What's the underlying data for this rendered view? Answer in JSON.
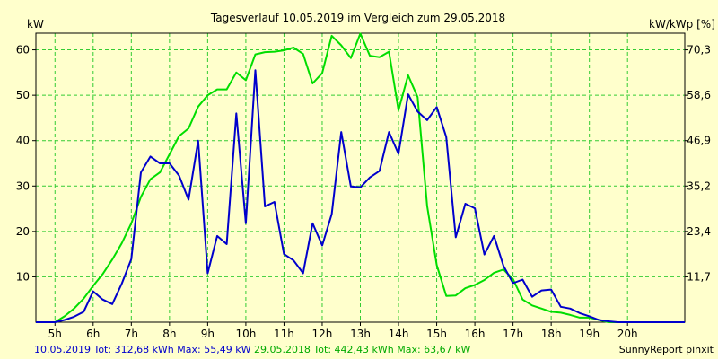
{
  "chart_data": {
    "type": "line",
    "title": "Tagesverlauf 10.05.2019 im Vergleich zum 29.05.2018",
    "ylabel_left": "kW",
    "ylabel_right": "kW/kWp [%]",
    "credit": "SunnyReport pinxit",
    "xlim": [
      4.5,
      21.5
    ],
    "ylim": [
      0,
      63.67
    ],
    "x_ticks": [
      5,
      6,
      7,
      8,
      9,
      10,
      11,
      12,
      13,
      14,
      15,
      16,
      17,
      18,
      19,
      20
    ],
    "x_tick_labels": [
      "5h",
      "6h",
      "7h",
      "8h",
      "9h",
      "10h",
      "11h",
      "12h",
      "13h",
      "14h",
      "15h",
      "16h",
      "17h",
      "18h",
      "19h",
      "20h"
    ],
    "y_ticks": [
      10,
      20,
      30,
      40,
      50,
      60
    ],
    "y_tick_labels": [
      "10",
      "20",
      "30",
      "40",
      "50",
      "60"
    ],
    "y2_ticks": [
      10,
      20,
      30,
      40,
      50,
      60
    ],
    "y2_tick_labels": [
      "11,7",
      "23,4",
      "35,2",
      "46,9",
      "58,6",
      "70,3"
    ],
    "grid": true,
    "series": [
      {
        "name": "10.05.2019",
        "color": "#0000cc",
        "x": [
          4.5,
          4.75,
          5.0,
          5.25,
          5.5,
          5.75,
          6.0,
          6.25,
          6.5,
          6.75,
          7.0,
          7.25,
          7.5,
          7.75,
          8.0,
          8.25,
          8.5,
          8.75,
          9.0,
          9.25,
          9.5,
          9.75,
          10.0,
          10.25,
          10.5,
          10.75,
          11.0,
          11.25,
          11.5,
          11.75,
          12.0,
          12.25,
          12.5,
          12.75,
          13.0,
          13.25,
          13.5,
          13.75,
          14.0,
          14.25,
          14.5,
          14.75,
          15.0,
          15.25,
          15.5,
          15.75,
          16.0,
          16.25,
          16.5,
          16.75,
          17.0,
          17.25,
          17.5,
          17.75,
          18.0,
          18.25,
          18.5,
          18.75,
          19.0,
          19.25,
          19.5,
          19.75,
          20.0,
          20.25,
          20.5,
          20.75,
          21.0,
          21.25,
          21.5
        ],
        "y": [
          0,
          0,
          0,
          0.5,
          1.2,
          2.3,
          6.8,
          5.0,
          4.0,
          8.5,
          13.9,
          33.0,
          36.5,
          35.0,
          35.0,
          32.3,
          27.0,
          40.0,
          10.8,
          19.0,
          17.2,
          46.0,
          21.8,
          55.5,
          25.5,
          26.5,
          15.0,
          13.6,
          10.8,
          21.8,
          16.9,
          23.8,
          41.9,
          29.9,
          29.7,
          31.9,
          33.3,
          41.9,
          37.1,
          50.2,
          46.4,
          44.5,
          47.4,
          40.8,
          18.7,
          26.1,
          25.1,
          14.9,
          19.0,
          12.4,
          8.6,
          9.4,
          5.6,
          7.0,
          7.2,
          3.4,
          3.0,
          2.0,
          1.3,
          0.5,
          0.2,
          0,
          0,
          0,
          0,
          0,
          0,
          0,
          0
        ]
      },
      {
        "name": "29.05.2018",
        "color": "#00dd00",
        "x": [
          4.5,
          4.75,
          5.0,
          5.25,
          5.5,
          5.75,
          6.0,
          6.25,
          6.5,
          6.75,
          7.0,
          7.25,
          7.5,
          7.75,
          8.0,
          8.25,
          8.5,
          8.75,
          9.0,
          9.25,
          9.5,
          9.75,
          10.0,
          10.25,
          10.5,
          10.75,
          11.0,
          11.25,
          11.5,
          11.75,
          12.0,
          12.25,
          12.5,
          12.75,
          13.0,
          13.25,
          13.5,
          13.75,
          14.0,
          14.25,
          14.5,
          14.75,
          15.0,
          15.25,
          15.5,
          15.75,
          16.0,
          16.25,
          16.5,
          16.75,
          17.0,
          17.25,
          17.5,
          17.75,
          18.0,
          18.25,
          18.5,
          18.75,
          19.0,
          19.25,
          19.5,
          19.75,
          20.0,
          20.25,
          20.5,
          20.75,
          21.0,
          21.25,
          21.5
        ],
        "y": [
          0,
          0,
          0,
          1.3,
          3.0,
          5.2,
          8.0,
          10.6,
          13.8,
          17.4,
          21.8,
          27.6,
          31.5,
          33.0,
          37.0,
          41.0,
          42.7,
          47.5,
          50.0,
          51.3,
          51.3,
          55.0,
          53.3,
          59.0,
          59.5,
          59.6,
          59.9,
          60.5,
          59.1,
          52.6,
          54.9,
          63.1,
          61.0,
          58.2,
          63.6,
          58.7,
          58.4,
          59.6,
          46.7,
          54.4,
          49.6,
          25.6,
          12.6,
          5.8,
          5.9,
          7.5,
          8.2,
          9.3,
          10.9,
          11.6,
          9.5,
          5.0,
          3.7,
          3.0,
          2.3,
          2.1,
          1.6,
          1.0,
          1.0,
          0.5,
          0,
          0,
          0,
          0,
          0,
          0,
          0,
          0,
          0
        ]
      }
    ],
    "footer": [
      {
        "date": "10.05.2019",
        "summary": " Tot: 312,68 kWh Max: 55,49 kW "
      },
      {
        "date": "29.05.2018",
        "summary": " Tot: 442,43 kWh Max: 63,67 kW"
      }
    ]
  }
}
